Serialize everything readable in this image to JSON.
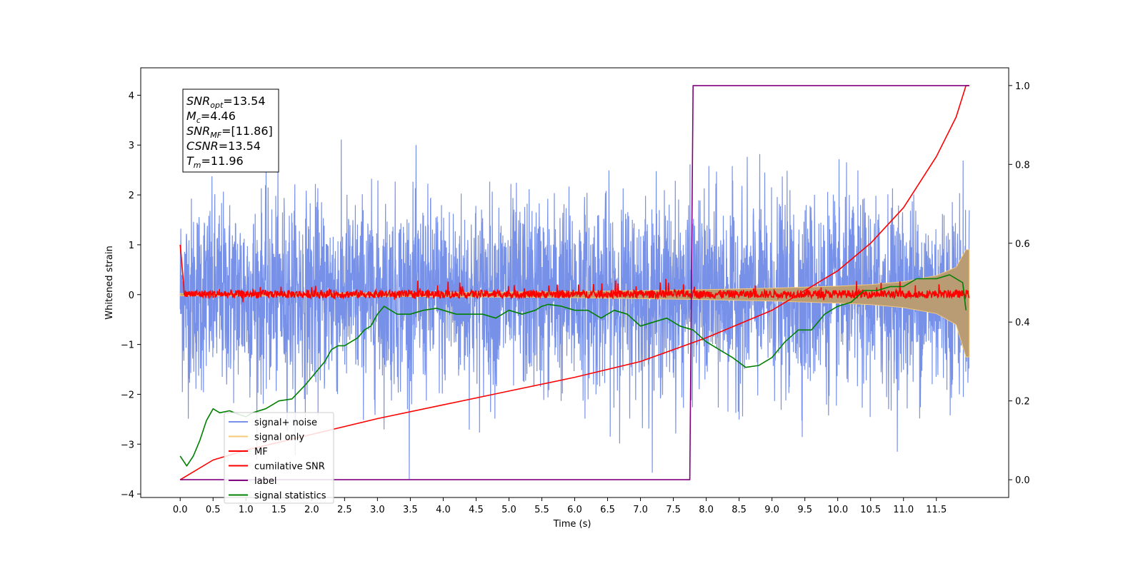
{
  "chart_data": {
    "type": "line",
    "title": "",
    "xlabel": "Time (s)",
    "ylabel": "Whitened strain",
    "xlim": [
      -0.6,
      12.6
    ],
    "ylim": [
      -4.07,
      4.55
    ],
    "y2lim": [
      -0.045,
      1.045
    ],
    "xticks": [
      "0.0",
      "0.5",
      "1.0",
      "1.5",
      "2.0",
      "2.5",
      "3.0",
      "3.5",
      "4.0",
      "4.5",
      "5.0",
      "5.5",
      "6.0",
      "6.5",
      "7.0",
      "7.5",
      "8.0",
      "8.5",
      "9.0",
      "9.5",
      "10.0",
      "10.5",
      "11.0",
      "11.5"
    ],
    "yticks": [
      "−4",
      "−3",
      "−2",
      "−1",
      "0",
      "1",
      "2",
      "3",
      "4"
    ],
    "y2ticks": [
      "0.0",
      "0.2",
      "0.4",
      "0.6",
      "0.8",
      "1.0"
    ],
    "grid": false,
    "legend_position": "lower-left",
    "annotation": [
      {
        "base": "SNR",
        "sub": "opt",
        "value": "=13.54"
      },
      {
        "base": "M",
        "sub": "c",
        "value": "=4.46"
      },
      {
        "base": "SNR",
        "sub": "MF",
        "value": "=[11.86]"
      },
      {
        "base": "CSNR",
        "sub": "",
        "value": "=13.54"
      },
      {
        "base": "T",
        "sub": "m",
        "value": "=11.96"
      }
    ],
    "series": [
      {
        "name": "signal+ noise",
        "color": "#7891e8",
        "axis": "left",
        "kind": "noise",
        "range": [
          0,
          12.0
        ],
        "amplitude": 0.95
      },
      {
        "name": "signal only",
        "color": "#f5c87a",
        "axis": "left",
        "kind": "envelope",
        "x": [
          0,
          2,
          4,
          6,
          8,
          9,
          10,
          10.5,
          11,
          11.5,
          11.8,
          11.95,
          12.0
        ],
        "upper": [
          0.02,
          0.03,
          0.04,
          0.06,
          0.1,
          0.13,
          0.17,
          0.2,
          0.26,
          0.38,
          0.55,
          0.9,
          0.9
        ],
        "lower": [
          -0.02,
          -0.03,
          -0.04,
          -0.06,
          -0.1,
          -0.13,
          -0.17,
          -0.2,
          -0.26,
          -0.38,
          -0.6,
          -1.25,
          -1.25
        ]
      },
      {
        "name": "MF",
        "color": "#ff0000",
        "axis": "left",
        "kind": "mf",
        "range": [
          0,
          12.0
        ]
      },
      {
        "name": "cumilative SNR",
        "color": "#ff0000",
        "axis": "right",
        "x": [
          0,
          0.5,
          1,
          2,
          3,
          4,
          5,
          6,
          7,
          8,
          9,
          10,
          10.5,
          11,
          11.5,
          11.8,
          11.95,
          12.0
        ],
        "y": [
          0.0,
          0.05,
          0.075,
          0.115,
          0.155,
          0.19,
          0.225,
          0.26,
          0.3,
          0.36,
          0.43,
          0.53,
          0.6,
          0.69,
          0.82,
          0.92,
          1.0,
          1.0
        ]
      },
      {
        "name": "label",
        "color": "#800080",
        "axis": "right",
        "x": [
          0,
          7.75,
          7.8,
          12.0
        ],
        "y": [
          0.0,
          0.0,
          1.0,
          1.0
        ]
      },
      {
        "name": "signal statistics",
        "color": "#008000",
        "axis": "right",
        "x": [
          0,
          0.1,
          0.2,
          0.3,
          0.4,
          0.5,
          0.6,
          0.75,
          0.9,
          1.0,
          1.1,
          1.3,
          1.5,
          1.7,
          1.9,
          2.0,
          2.2,
          2.3,
          2.4,
          2.5,
          2.6,
          2.7,
          2.8,
          2.9,
          3.0,
          3.1,
          3.3,
          3.5,
          3.7,
          3.9,
          4.0,
          4.2,
          4.4,
          4.6,
          4.8,
          5.0,
          5.2,
          5.4,
          5.5,
          5.6,
          5.8,
          6.0,
          6.2,
          6.4,
          6.6,
          6.8,
          7.0,
          7.2,
          7.4,
          7.6,
          7.8,
          8.0,
          8.2,
          8.4,
          8.6,
          8.8,
          9.0,
          9.2,
          9.4,
          9.6,
          9.8,
          10.0,
          10.2,
          10.4,
          10.6,
          10.8,
          11.0,
          11.2,
          11.4,
          11.5,
          11.7,
          11.9,
          11.95
        ],
        "y": [
          0.06,
          0.035,
          0.06,
          0.1,
          0.15,
          0.18,
          0.17,
          0.175,
          0.165,
          0.16,
          0.17,
          0.18,
          0.2,
          0.205,
          0.24,
          0.26,
          0.3,
          0.33,
          0.34,
          0.34,
          0.35,
          0.36,
          0.38,
          0.39,
          0.42,
          0.44,
          0.42,
          0.42,
          0.43,
          0.435,
          0.43,
          0.42,
          0.42,
          0.42,
          0.41,
          0.43,
          0.42,
          0.43,
          0.44,
          0.445,
          0.44,
          0.43,
          0.43,
          0.41,
          0.43,
          0.42,
          0.39,
          0.4,
          0.41,
          0.39,
          0.38,
          0.35,
          0.33,
          0.31,
          0.285,
          0.29,
          0.31,
          0.35,
          0.38,
          0.38,
          0.42,
          0.44,
          0.45,
          0.48,
          0.48,
          0.49,
          0.49,
          0.51,
          0.51,
          0.51,
          0.52,
          0.5,
          0.43
        ]
      }
    ]
  }
}
